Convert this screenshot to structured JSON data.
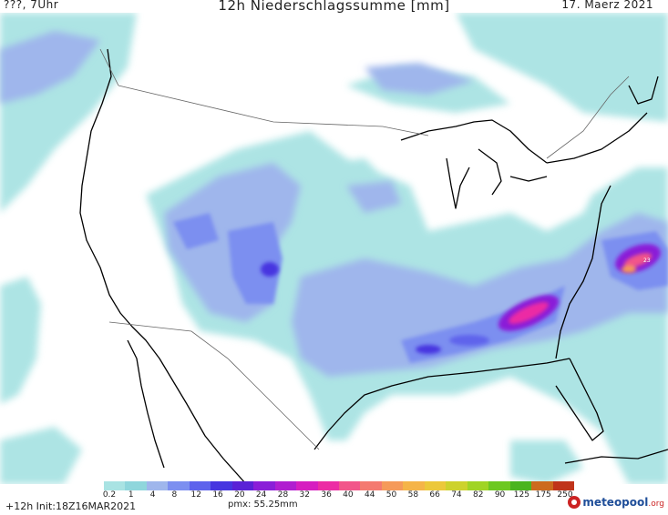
{
  "header": {
    "left": "???, 7Uhr",
    "title": "12h Niederschlagssumme [mm]",
    "date": "17. Maerz 2021"
  },
  "map": {
    "peak_label": "23"
  },
  "legend": {
    "ticks": [
      "0.2",
      "1",
      "4",
      "8",
      "12",
      "16",
      "20",
      "24",
      "28",
      "32",
      "36",
      "40",
      "44",
      "50",
      "58",
      "66",
      "74",
      "82",
      "90",
      "125",
      "175",
      "250"
    ],
    "colors": [
      "#a9e3e3",
      "#8fd6dc",
      "#9fb6ec",
      "#7c8ff0",
      "#5e63ec",
      "#4636e0",
      "#5a22d6",
      "#8a1ed8",
      "#b01ed0",
      "#d61ec0",
      "#ec2ca4",
      "#f2558a",
      "#f47a70",
      "#f59a5a",
      "#f5b448",
      "#ecc83a",
      "#cdd22c",
      "#a0d424",
      "#6cc820",
      "#4ab41e",
      "#cc6a1e",
      "#c0341a"
    ]
  },
  "footer": {
    "init": "+12h  Init:18Z16MAR2021",
    "pmx": "pmx: 55.25mm",
    "logo_main": "meteopool",
    "logo_suffix": ".org"
  }
}
